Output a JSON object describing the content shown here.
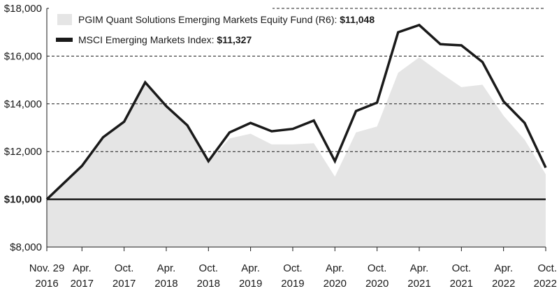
{
  "chart_data": {
    "type": "area",
    "x": [
      "Nov. 29 2016",
      "Apr. 2017",
      "Oct. 2017",
      "Apr. 2018",
      "Oct. 2018",
      "Apr. 2019",
      "Oct. 2019",
      "Apr. 2020",
      "Oct. 2020",
      "Apr. 2021",
      "Oct. 2021",
      "Apr. 2022",
      "Oct. 2022"
    ],
    "x_ticks": [
      {
        "line1": "Nov. 29",
        "line2": "2016"
      },
      {
        "line1": "Apr.",
        "line2": "2017"
      },
      {
        "line1": "Oct.",
        "line2": "2017"
      },
      {
        "line1": "Apr.",
        "line2": "2018"
      },
      {
        "line1": "Oct.",
        "line2": "2018"
      },
      {
        "line1": "Apr.",
        "line2": "2019"
      },
      {
        "line1": "Oct.",
        "line2": "2019"
      },
      {
        "line1": "Apr.",
        "line2": "2020"
      },
      {
        "line1": "Oct.",
        "line2": "2020"
      },
      {
        "line1": "Apr.",
        "line2": "2021"
      },
      {
        "line1": "Oct.",
        "line2": "2021"
      },
      {
        "line1": "Apr.",
        "line2": "2022"
      },
      {
        "line1": "Oct.",
        "line2": "2022"
      }
    ],
    "x_months": [
      0,
      5,
      11,
      17,
      23,
      29,
      35,
      41,
      47,
      53,
      59,
      65,
      71
    ],
    "y_ticks": [
      "$8,000",
      "$10,000",
      "$12,000",
      "$14,000",
      "$16,000",
      "$18,000"
    ],
    "y_tick_values": [
      8000,
      10000,
      12000,
      14000,
      16000,
      18000
    ],
    "ylim": [
      8000,
      18000
    ],
    "baseline": 10000,
    "grid": "horizontal-dashed",
    "legend_position": "top-left",
    "series": [
      {
        "name": "PGIM Quant Solutions Emerging Markets Equity Fund (R6): ",
        "ending_value": "$11,048",
        "style": "area",
        "color": "#e5e5e5",
        "points": [
          [
            0,
            10000
          ],
          [
            2.5,
            10700
          ],
          [
            5,
            11400
          ],
          [
            8,
            12600
          ],
          [
            11,
            13250
          ],
          [
            14,
            14900
          ],
          [
            17,
            13900
          ],
          [
            20,
            13100
          ],
          [
            23,
            11550
          ],
          [
            26,
            12550
          ],
          [
            29,
            12750
          ],
          [
            32,
            12300
          ],
          [
            35,
            12300
          ],
          [
            38,
            12350
          ],
          [
            41,
            10950
          ],
          [
            44,
            12800
          ],
          [
            47,
            13050
          ],
          [
            50,
            15300
          ],
          [
            53,
            15950
          ],
          [
            56,
            15300
          ],
          [
            59,
            14700
          ],
          [
            62,
            14800
          ],
          [
            65,
            13500
          ],
          [
            68,
            12500
          ],
          [
            71,
            11048
          ]
        ]
      },
      {
        "name": "MSCI Emerging Markets Index: ",
        "ending_value": "$11,327",
        "style": "line",
        "color": "#1a1a1a",
        "points": [
          [
            0,
            10000
          ],
          [
            2.5,
            10700
          ],
          [
            5,
            11400
          ],
          [
            8,
            12600
          ],
          [
            11,
            13250
          ],
          [
            14,
            14900
          ],
          [
            17,
            13900
          ],
          [
            20,
            13100
          ],
          [
            23,
            11600
          ],
          [
            26,
            12800
          ],
          [
            29,
            13200
          ],
          [
            32,
            12850
          ],
          [
            35,
            12950
          ],
          [
            38,
            13300
          ],
          [
            41,
            11600
          ],
          [
            44,
            13700
          ],
          [
            47,
            14050
          ],
          [
            50,
            17000
          ],
          [
            53,
            17300
          ],
          [
            56,
            16500
          ],
          [
            59,
            16450
          ],
          [
            62,
            15750
          ],
          [
            65,
            14100
          ],
          [
            68,
            13200
          ],
          [
            71,
            11327
          ]
        ]
      }
    ]
  }
}
